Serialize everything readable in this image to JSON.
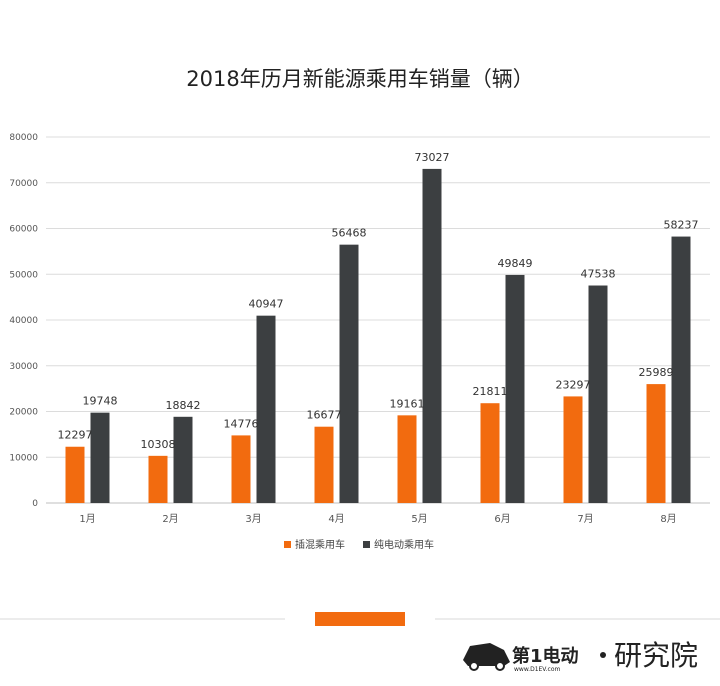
{
  "colors": {
    "phev": "#f26b0f",
    "bev": "#3c3f41",
    "grid": "#dcdcdc",
    "accent_bar": "#f26b0f"
  },
  "chart_data": {
    "type": "bar",
    "title": "2018年历月新能源乘用车销量（辆）",
    "categories": [
      "1月",
      "2月",
      "3月",
      "4月",
      "5月",
      "6月",
      "7月",
      "8月"
    ],
    "series": [
      {
        "name": "插混乘用车",
        "values": [
          12297,
          10308,
          14776,
          16677,
          19161,
          21811,
          23297,
          25989
        ]
      },
      {
        "name": "纯电动乘用车",
        "values": [
          19748,
          18842,
          40947,
          56468,
          73027,
          49849,
          47538,
          58237
        ]
      }
    ],
    "ylim": [
      0,
      80000
    ],
    "yticks": [
      "0",
      "10000",
      "20000",
      "30000",
      "40000",
      "50000",
      "60000",
      "70000",
      "80000"
    ],
    "grid": true,
    "legend_position": "bottom"
  },
  "footer": {
    "logo_text": "第1电动",
    "logo_url": "www.D1EV.com",
    "institute": "研究院"
  }
}
